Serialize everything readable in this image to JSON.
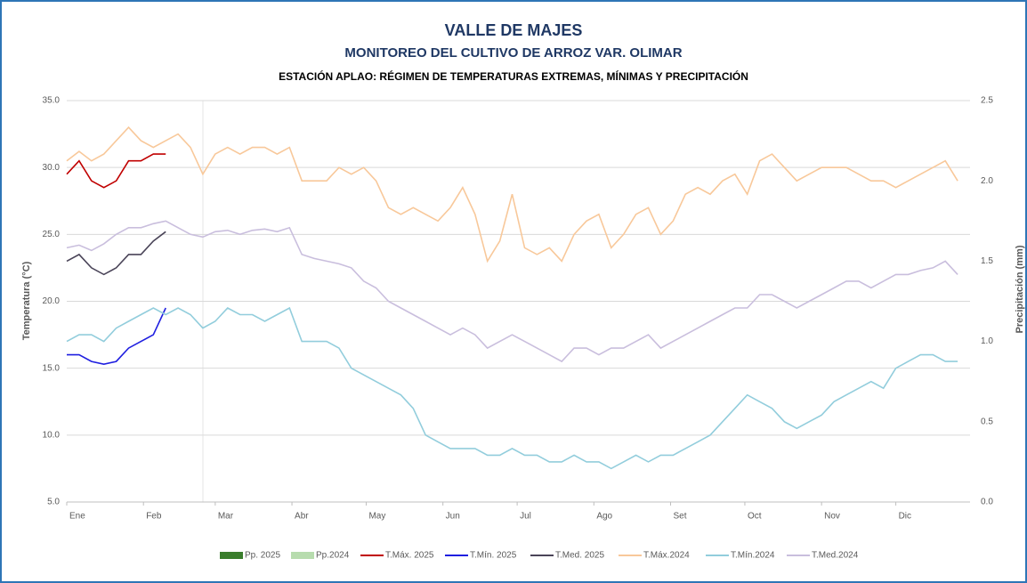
{
  "chart_data": {
    "type": "line",
    "title": "VALLE DE MAJES",
    "subtitle": "MONITOREO DEL CULTIVO DE ARROZ VAR. OLIMAR",
    "caption": "ESTACIÓN APLAO: RÉGIMEN DE TEMPERATURAS EXTREMAS, MÍNIMAS Y PRECIPITACIÓN",
    "ylabel": "Temperatura (°C)",
    "y2label": "Precipitación (mm)",
    "xlim": [
      1,
      366
    ],
    "xticks": [
      {
        "value": 1,
        "label": "Ene"
      },
      {
        "value": 32,
        "label": "Feb"
      },
      {
        "value": 61,
        "label": "Mar"
      },
      {
        "value": 92,
        "label": "Abr"
      },
      {
        "value": 122,
        "label": "May"
      },
      {
        "value": 153,
        "label": "Jun"
      },
      {
        "value": 183,
        "label": "Jul"
      },
      {
        "value": 214,
        "label": "Ago"
      },
      {
        "value": 245,
        "label": "Set"
      },
      {
        "value": 275,
        "label": "Oct"
      },
      {
        "value": 306,
        "label": "Nov"
      },
      {
        "value": 336,
        "label": "Dic"
      }
    ],
    "ylim": [
      5,
      35
    ],
    "yticks": [
      {
        "value": 5,
        "label": "5.0"
      },
      {
        "value": 10,
        "label": "10.0"
      },
      {
        "value": 15,
        "label": "15.0"
      },
      {
        "value": 20,
        "label": "20.0"
      },
      {
        "value": 25,
        "label": "25.0"
      },
      {
        "value": 30,
        "label": "30.0"
      },
      {
        "value": 35,
        "label": "35.0"
      }
    ],
    "y2lim": [
      0,
      2.5
    ],
    "y2ticks": [
      {
        "value": 0,
        "label": "0.0"
      },
      {
        "value": 0.5,
        "label": "0.5"
      },
      {
        "value": 1,
        "label": "1.0"
      },
      {
        "value": 1.5,
        "label": "1.5"
      },
      {
        "value": 2,
        "label": "2.0"
      },
      {
        "value": 2.5,
        "label": "2.5"
      }
    ],
    "grid": true,
    "legend": "bottom",
    "series": [
      {
        "name": "Pp. 2025",
        "color": "#3a7d2c",
        "axis": "y2",
        "kind": "bar",
        "x": [],
        "values": []
      },
      {
        "name": "Pp.2024",
        "color": "#b7dcae",
        "axis": "y2",
        "kind": "bar",
        "x": [],
        "values": []
      },
      {
        "name": "T.Máx. 2025",
        "color": "#c00000",
        "x": [
          1,
          6,
          11,
          16,
          21,
          26,
          31,
          36,
          41
        ],
        "values": [
          29.5,
          30.5,
          29,
          28.5,
          29,
          30.5,
          30.5,
          31,
          31
        ]
      },
      {
        "name": "T.Mín. 2025",
        "color": "#1f1fe0",
        "x": [
          1,
          6,
          11,
          16,
          21,
          26,
          31,
          36,
          41
        ],
        "values": [
          16,
          16,
          15.5,
          15.3,
          15.5,
          16.5,
          17,
          17.5,
          19.5
        ]
      },
      {
        "name": "T.Med. 2025",
        "color": "#4a4458",
        "x": [
          1,
          6,
          11,
          16,
          21,
          26,
          31,
          36,
          41
        ],
        "values": [
          23,
          23.5,
          22.5,
          22,
          22.5,
          23.5,
          23.5,
          24.5,
          25.2
        ]
      },
      {
        "name": "T.Máx.2024",
        "color": "#f8c89a",
        "x": [
          1,
          6,
          11,
          16,
          21,
          26,
          31,
          36,
          41,
          46,
          51,
          56,
          61,
          66,
          71,
          76,
          81,
          86,
          91,
          96,
          101,
          106,
          111,
          116,
          121,
          126,
          131,
          136,
          141,
          146,
          151,
          156,
          161,
          166,
          171,
          176,
          181,
          186,
          191,
          196,
          201,
          206,
          211,
          216,
          221,
          226,
          231,
          236,
          241,
          246,
          251,
          256,
          261,
          266,
          271,
          276,
          281,
          286,
          291,
          296,
          301,
          306,
          311,
          316,
          321,
          326,
          331,
          336,
          341,
          346,
          351,
          356,
          361
        ],
        "values": [
          30.5,
          31.2,
          30.5,
          31,
          32,
          33,
          32,
          31.5,
          32,
          32.5,
          31.5,
          29.5,
          31,
          31.5,
          31,
          31.5,
          31.5,
          31,
          31.5,
          29,
          29,
          29,
          30,
          29.5,
          30,
          29,
          27,
          26.5,
          27,
          26.5,
          26,
          27,
          28.5,
          26.5,
          23,
          24.5,
          28,
          24,
          23.5,
          24,
          23,
          25,
          26,
          26.5,
          24,
          25,
          26.5,
          27,
          25,
          26,
          28,
          28.5,
          28,
          29,
          29.5,
          28,
          30.5,
          31,
          30,
          29,
          29.5,
          30,
          30,
          30,
          29.5,
          29,
          29,
          28.5,
          29,
          29.5,
          30,
          30.5,
          29
        ]
      },
      {
        "name": "T.Mín.2024",
        "color": "#92cddc",
        "x": [
          1,
          6,
          11,
          16,
          21,
          26,
          31,
          36,
          41,
          46,
          51,
          56,
          61,
          66,
          71,
          76,
          81,
          86,
          91,
          96,
          101,
          106,
          111,
          116,
          121,
          126,
          131,
          136,
          141,
          146,
          151,
          156,
          161,
          166,
          171,
          176,
          181,
          186,
          191,
          196,
          201,
          206,
          211,
          216,
          221,
          226,
          231,
          236,
          241,
          246,
          251,
          256,
          261,
          266,
          271,
          276,
          281,
          286,
          291,
          296,
          301,
          306,
          311,
          316,
          321,
          326,
          331,
          336,
          341,
          346,
          351,
          356,
          361
        ],
        "values": [
          17,
          17.5,
          17.5,
          17,
          18,
          18.5,
          19,
          19.5,
          19,
          19.5,
          19,
          18,
          18.5,
          19.5,
          19,
          19,
          18.5,
          19,
          19.5,
          17,
          17,
          17,
          16.5,
          15,
          14.5,
          14,
          13.5,
          13,
          12,
          10,
          9.5,
          9,
          9,
          9,
          8.5,
          8.5,
          9,
          8.5,
          8.5,
          8,
          8,
          8.5,
          8,
          8,
          7.5,
          8,
          8.5,
          8,
          8.5,
          8.5,
          9,
          9.5,
          10,
          11,
          12,
          13,
          12.5,
          12,
          11,
          10.5,
          11,
          11.5,
          12.5,
          13,
          13.5,
          14,
          13.5,
          15,
          15.5,
          16,
          16,
          15.5,
          15.5
        ]
      },
      {
        "name": "T.Med.2024",
        "color": "#c9bedd",
        "x": [
          1,
          6,
          11,
          16,
          21,
          26,
          31,
          36,
          41,
          46,
          51,
          56,
          61,
          66,
          71,
          76,
          81,
          86,
          91,
          96,
          101,
          106,
          111,
          116,
          121,
          126,
          131,
          136,
          141,
          146,
          151,
          156,
          161,
          166,
          171,
          176,
          181,
          186,
          191,
          196,
          201,
          206,
          211,
          216,
          221,
          226,
          231,
          236,
          241,
          246,
          251,
          256,
          261,
          266,
          271,
          276,
          281,
          286,
          291,
          296,
          301,
          306,
          311,
          316,
          321,
          326,
          331,
          336,
          341,
          346,
          351,
          356,
          361
        ],
        "values": [
          24,
          24.2,
          23.8,
          24.3,
          25,
          25.5,
          25.5,
          25.8,
          26,
          25.5,
          25,
          24.8,
          25.2,
          25.3,
          25,
          25.3,
          25.4,
          25.2,
          25.5,
          23.5,
          23.2,
          23,
          22.8,
          22.5,
          21.5,
          21,
          20,
          19.5,
          19,
          18.5,
          18,
          17.5,
          18,
          17.5,
          16.5,
          17,
          17.5,
          17,
          16.5,
          16,
          15.5,
          16.5,
          16.5,
          16,
          16.5,
          16.5,
          17,
          17.5,
          16.5,
          17,
          17.5,
          18,
          18.5,
          19,
          19.5,
          19.5,
          20.5,
          20.5,
          20,
          19.5,
          20,
          20.5,
          21,
          21.5,
          21.5,
          21,
          21.5,
          22,
          22,
          22.3,
          22.5,
          23,
          22
        ]
      }
    ]
  }
}
